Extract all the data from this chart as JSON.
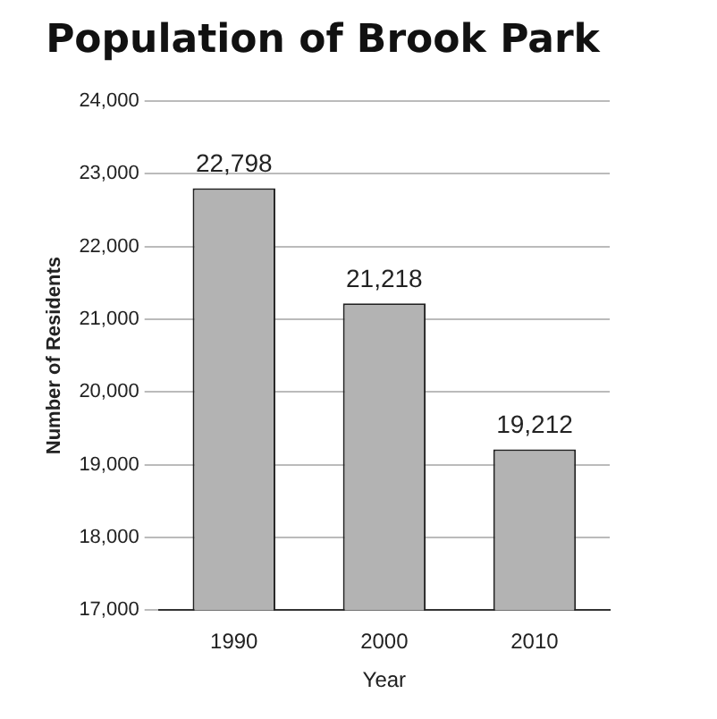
{
  "chart_data": {
    "type": "bar",
    "title": "Population of Brook Park",
    "xlabel": "Year",
    "ylabel": "Number of Residents",
    "categories": [
      "1990",
      "2000",
      "2010"
    ],
    "values": [
      22798,
      21218,
      19212
    ],
    "value_labels": [
      "22,798",
      "21,218",
      "19,212"
    ],
    "color": "#b3b3b3",
    "ylim": [
      17000,
      24000
    ],
    "yticks": [
      {
        "value": 17000,
        "label": "17,000"
      },
      {
        "value": 18000,
        "label": "18,000"
      },
      {
        "value": 19000,
        "label": "19,000"
      },
      {
        "value": 20000,
        "label": "20,000"
      },
      {
        "value": 21000,
        "label": "21,000"
      },
      {
        "value": 22000,
        "label": "22,000"
      },
      {
        "value": 23000,
        "label": "23,000"
      },
      {
        "value": 24000,
        "label": "24,000"
      }
    ],
    "grid": "y",
    "legend": false
  }
}
